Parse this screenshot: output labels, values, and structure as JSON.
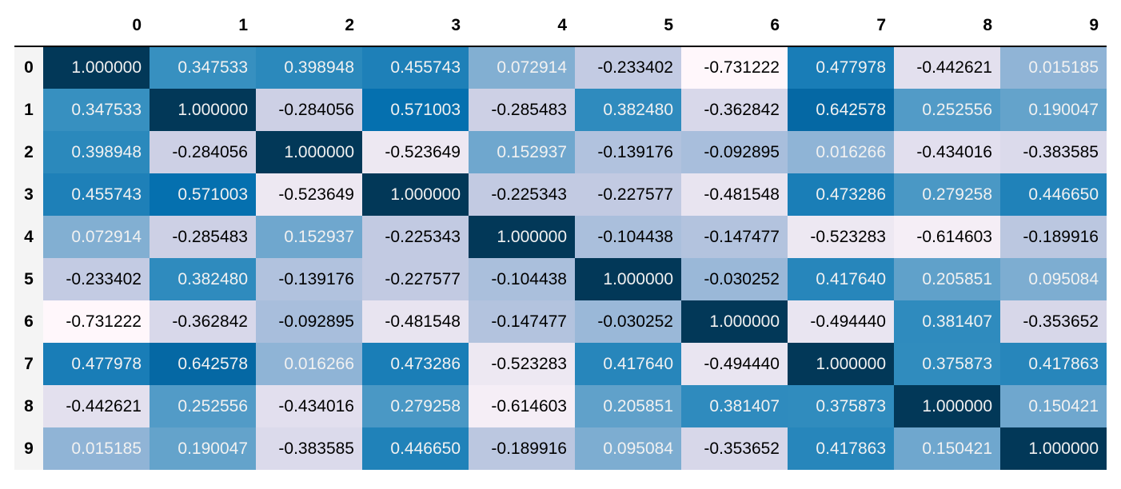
{
  "chart_data": {
    "type": "heatmap",
    "title": "",
    "xlabel": "",
    "ylabel": "",
    "columns": [
      "0",
      "1",
      "2",
      "3",
      "4",
      "5",
      "6",
      "7",
      "8",
      "9"
    ],
    "rows": [
      "0",
      "1",
      "2",
      "3",
      "4",
      "5",
      "6",
      "7",
      "8",
      "9"
    ],
    "colormap": "PuBu",
    "values": [
      [
        "1.000000",
        "0.347533",
        "0.398948",
        "0.455743",
        "0.072914",
        "-0.233402",
        "-0.731222",
        "0.477978",
        "-0.442621",
        "0.015185"
      ],
      [
        "0.347533",
        "1.000000",
        "-0.284056",
        "0.571003",
        "-0.285483",
        "0.382480",
        "-0.362842",
        "0.642578",
        "0.252556",
        "0.190047"
      ],
      [
        "0.398948",
        "-0.284056",
        "1.000000",
        "-0.523649",
        "0.152937",
        "-0.139176",
        "-0.092895",
        "0.016266",
        "-0.434016",
        "-0.383585"
      ],
      [
        "0.455743",
        "0.571003",
        "-0.523649",
        "1.000000",
        "-0.225343",
        "-0.227577",
        "-0.481548",
        "0.473286",
        "0.279258",
        "0.446650"
      ],
      [
        "0.072914",
        "-0.285483",
        "0.152937",
        "-0.225343",
        "1.000000",
        "-0.104438",
        "-0.147477",
        "-0.523283",
        "-0.614603",
        "-0.189916"
      ],
      [
        "-0.233402",
        "0.382480",
        "-0.139176",
        "-0.227577",
        "-0.104438",
        "1.000000",
        "-0.030252",
        "0.417640",
        "0.205851",
        "0.095084"
      ],
      [
        "-0.731222",
        "-0.362842",
        "-0.092895",
        "-0.481548",
        "-0.147477",
        "-0.030252",
        "1.000000",
        "-0.494440",
        "0.381407",
        "-0.353652"
      ],
      [
        "0.477978",
        "0.642578",
        "0.016266",
        "0.473286",
        "-0.523283",
        "0.417640",
        "-0.494440",
        "1.000000",
        "0.375873",
        "0.417863"
      ],
      [
        "-0.442621",
        "0.252556",
        "-0.434016",
        "0.279258",
        "-0.614603",
        "0.205851",
        "0.381407",
        "0.375873",
        "1.000000",
        "0.150421"
      ],
      [
        "0.015185",
        "0.190047",
        "-0.383585",
        "0.446650",
        "-0.189916",
        "0.095084",
        "-0.353652",
        "0.417863",
        "0.150421",
        "1.000000"
      ]
    ]
  }
}
